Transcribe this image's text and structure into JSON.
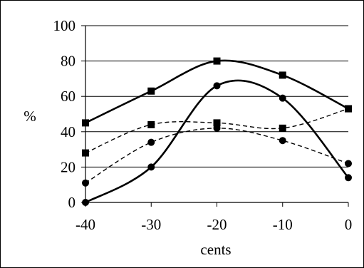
{
  "chart_data": {
    "type": "line",
    "title": "",
    "xlabel": "cents",
    "ylabel": "%",
    "x": [
      -40,
      -30,
      -20,
      -10,
      0
    ],
    "xlim": [
      -40,
      0
    ],
    "ylim": [
      0,
      100
    ],
    "xticks": [
      "-40",
      "-30",
      "-20",
      "-10",
      "0"
    ],
    "yticks": [
      "0",
      "20",
      "40",
      "60",
      "80",
      "100"
    ],
    "grid": "horizontal",
    "legend": "none",
    "series": [
      {
        "style": "solid",
        "marker": "square",
        "color": "#000000",
        "values": [
          45,
          63,
          80,
          72,
          53
        ]
      },
      {
        "style": "solid",
        "marker": "circle",
        "color": "#000000",
        "values": [
          0,
          20,
          66,
          59,
          14
        ]
      },
      {
        "style": "dashed",
        "marker": "square",
        "color": "#000000",
        "values": [
          28,
          44,
          45,
          42,
          53
        ]
      },
      {
        "style": "dashed",
        "marker": "circle",
        "color": "#000000",
        "values": [
          11,
          34,
          42,
          35,
          22
        ]
      }
    ]
  }
}
